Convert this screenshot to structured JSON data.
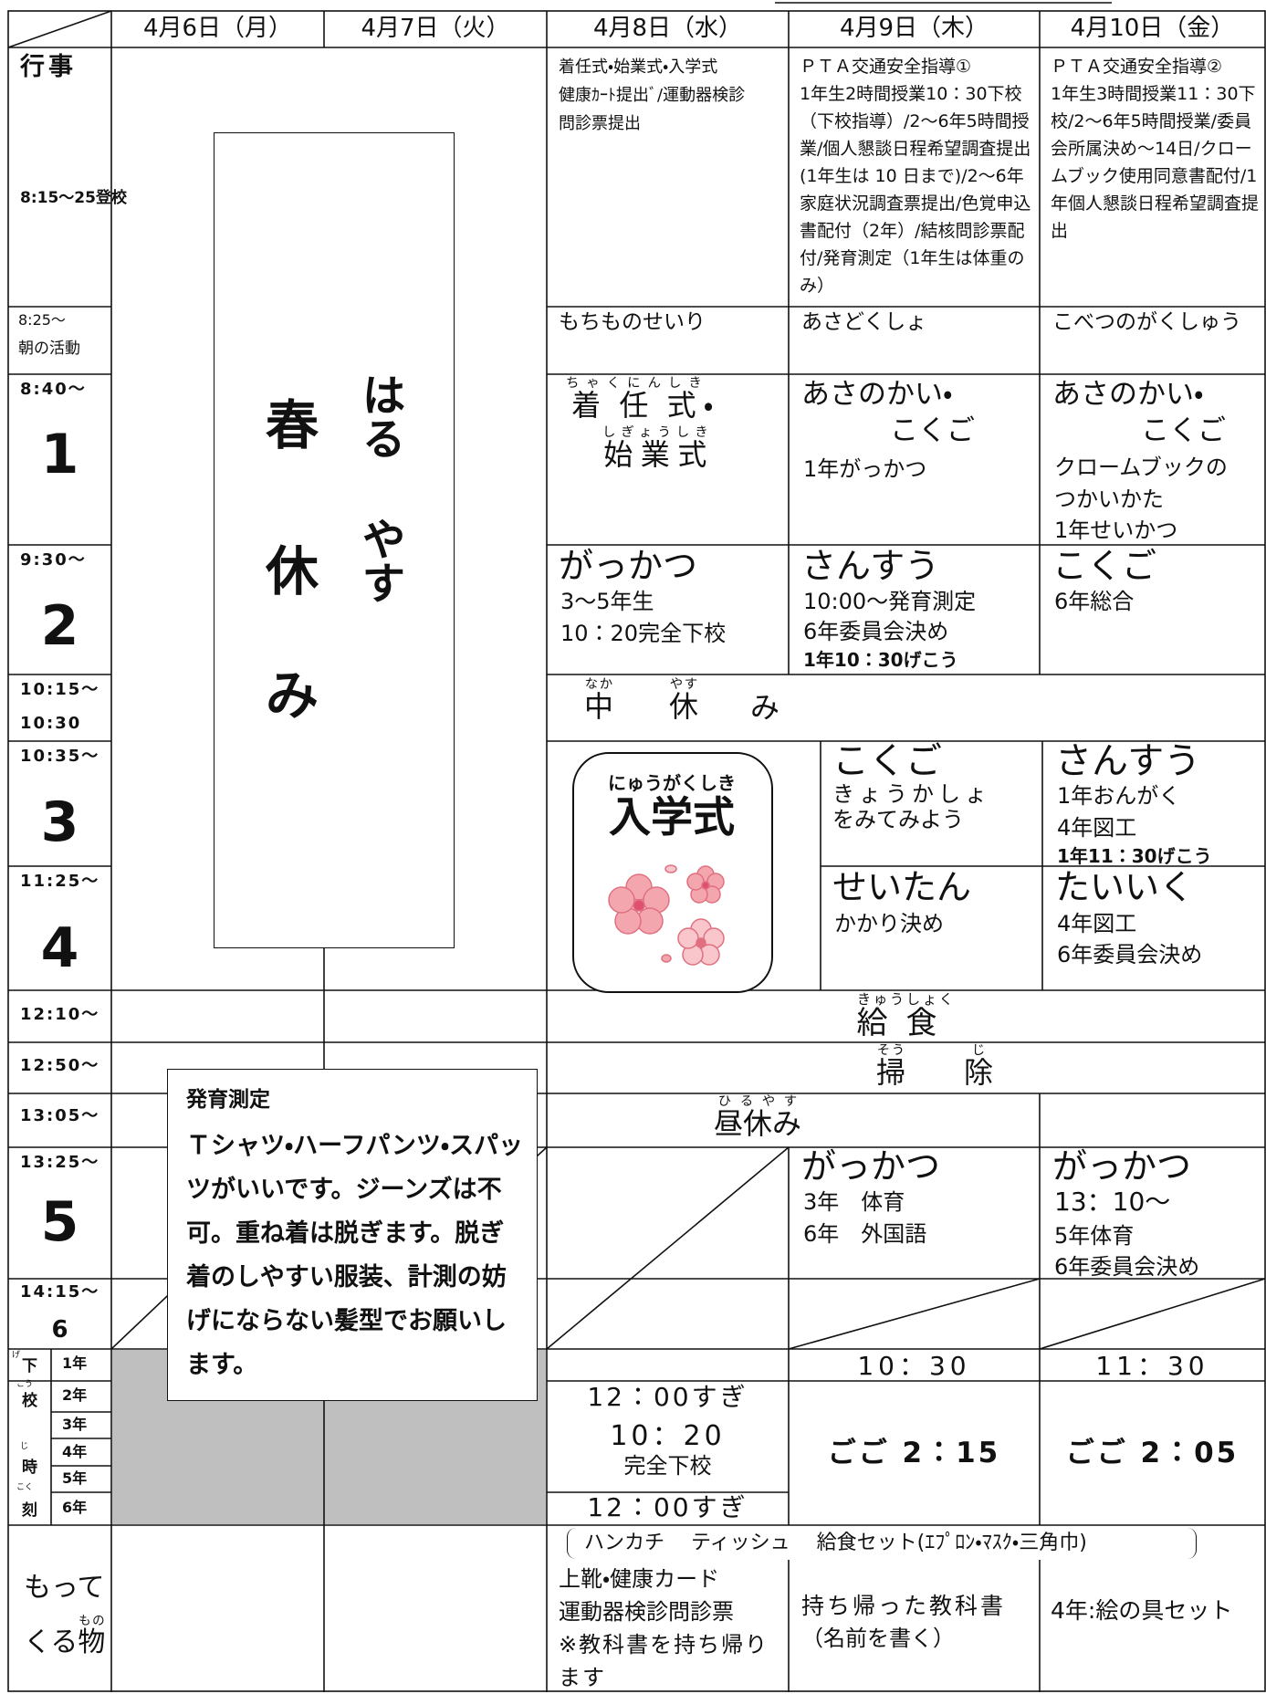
{
  "header": {
    "dates": [
      "4月6日（月）",
      "4月7日（火）",
      "4月8日（水）",
      "4月9日（木）",
      "4月10日（金）"
    ]
  },
  "labels": {
    "events": "行事",
    "arrival": "8:15～25登校",
    "morning_time": "8:25～",
    "morning": "朝の活動",
    "periods": [
      {
        "time": "8:40～",
        "number": "1"
      },
      {
        "time": "9:30～",
        "number": "2"
      },
      {
        "time": "10:35～",
        "number": "3"
      },
      {
        "time": "11:25～",
        "number": "4"
      },
      {
        "time": "13:25～",
        "number": "5"
      },
      {
        "time": "14:15～",
        "number": "6"
      }
    ],
    "break_time": [
      "10:15～",
      "10:30"
    ],
    "lunch_time": "12:10～",
    "cleaning_time": "12:50～",
    "noon_break_time": "13:05～",
    "dismissal": {
      "chars": [
        "下",
        "校",
        "時",
        "刻"
      ],
      "ruby": [
        "げ",
        "こう",
        "じ",
        "こく"
      ],
      "grades": [
        "1年",
        "2年",
        "3年",
        "4年",
        "5年",
        "6年"
      ]
    },
    "belongings": {
      "line1": "もって",
      "line2": "くる",
      "kanji": "物",
      "ruby": "もの"
    }
  },
  "spring_break": {
    "chars": [
      "春",
      "休",
      "み"
    ],
    "ruby": [
      "はる",
      "やす"
    ]
  },
  "events": {
    "wed": [
      "着任式・始業式・入学式",
      "健康ｶｰﾄ提出ﾞ/運動器検診",
      "問診票提出"
    ],
    "thu": [
      "ＰＴＡ交通安全指導①",
      "1年生2時間授業10：30下校（下校指導）/2～6年5時間授業/個人懇談日程希望調査提出(1年生は 10 日まで)/2～6年家庭状況調査票提出/色覚申込書配付（2年）/結核問診票配付/発育測定（1年生は体重のみ）"
    ],
    "fri": [
      "ＰＴＡ交通安全指導②",
      "1年生3時間授業11：30下校/2～6年5時間授業/委員会所属決め～14日/クロームブック使用同意書配付/1年個人懇談日程希望調査提出"
    ]
  },
  "morning": {
    "wed": "もちものせいり",
    "thu": "あさどくしょ",
    "fri": "こべつのがくしゅう"
  },
  "period1": {
    "wed": {
      "title1": "着任式",
      "title1_ruby": "ちゃくにんしき",
      "mark": "・",
      "title2": "始業式",
      "title2_ruby": "しぎょうしき"
    },
    "thu": [
      "あさのかい・",
      "こくご",
      "1年がっかつ"
    ],
    "fri": [
      "あさのかい・",
      "こくご",
      "クロームブックの",
      "つかいかた",
      "1年せいかつ"
    ]
  },
  "period2": {
    "wed": [
      "がっかつ",
      "3～5年生",
      "10：20完全下校"
    ],
    "thu": [
      "さんすう",
      "10:00～発育測定",
      "6年委員会決め",
      "1年10：30げこう"
    ],
    "fri": [
      "こくご",
      "6年総合"
    ]
  },
  "break": {
    "chars": [
      "中",
      "休",
      "み"
    ],
    "ruby": [
      "なか",
      "やす"
    ]
  },
  "ceremony": {
    "ruby": "にゅうがくしき",
    "title": "入学式"
  },
  "period3": {
    "thu": [
      "こくご",
      "きょうかしょ",
      "をみてみよう"
    ],
    "fri": [
      "さんすう",
      "1年おんがく",
      "4年図工",
      "1年11：30げこう"
    ]
  },
  "period4": {
    "thu": [
      "せいたん",
      "かかり決め"
    ],
    "fri": [
      "たいいく",
      "4年図工",
      "6年委員会決め"
    ]
  },
  "lunch": {
    "chars": [
      "給",
      "食"
    ],
    "ruby": "きゅうしょく"
  },
  "cleaning": {
    "chars": [
      "掃",
      "除"
    ],
    "ruby": [
      "そう",
      "じ"
    ]
  },
  "noon_break": {
    "text": "昼休み",
    "ruby": "ひるやす"
  },
  "period5": {
    "thu": [
      "がっかつ",
      "3年　体育",
      "6年　外国語"
    ],
    "fri": [
      "がっかつ",
      "13：10～",
      "5年体育",
      "6年委員会決め"
    ]
  },
  "note": {
    "title": "発育測定",
    "body": "Ｔシャツ・ハーフパンツ・スパッツがいいです。ジーンズは不可。重ね着は脱ぎます。脱ぎ着のしやすい服装、計測の妨げにならない髪型でお願いします。"
  },
  "dismissal_times": {
    "wed": [
      "12：00すぎ",
      "10：20",
      "完全下校",
      "12：00すぎ"
    ],
    "thu": [
      "10：30",
      "ごご 2：15"
    ],
    "fri": [
      "11：30",
      "ごご 2：05"
    ]
  },
  "belongings": {
    "common": "ハンカチ　 ティッシュ　 給食セット(ｴﾌﾟﾛﾝ・ﾏｽｸ・三角巾)",
    "wed": [
      "上靴・健康カード",
      "運動器検診問診票",
      "※教科書を持ち帰ります"
    ],
    "thu": [
      "持ち帰った教科書",
      "（名前を書く）"
    ],
    "fri": "4年:絵の具セット"
  }
}
